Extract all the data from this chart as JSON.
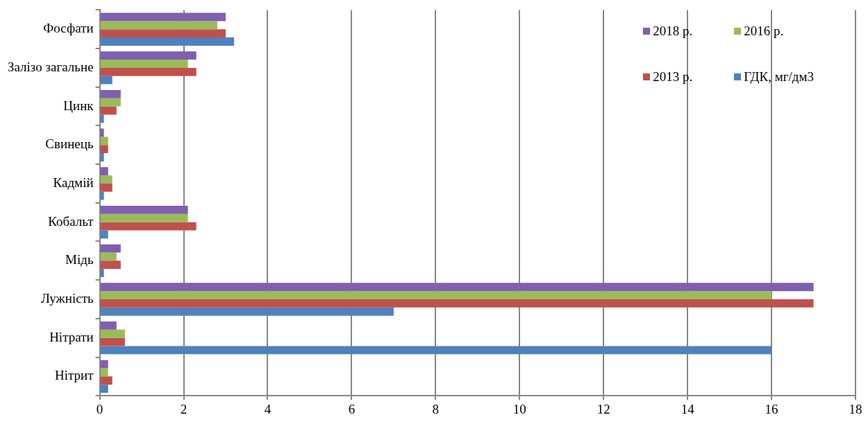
{
  "chart_data": {
    "type": "bar",
    "orientation": "horizontal",
    "categories": [
      "Фосфати",
      "Залізо загальне",
      "Цинк",
      "Свинець",
      "Кадмій",
      "Кобальт",
      "Мідь",
      "Лужність",
      "Нітрати",
      "Нітрит"
    ],
    "series": [
      {
        "name": "2018 р.",
        "color": "#7f5fb0",
        "values": [
          3.0,
          2.3,
          0.5,
          0.1,
          0.2,
          2.1,
          0.5,
          17,
          0.4,
          0.2
        ]
      },
      {
        "name": "2016 р.",
        "color": "#9bbb59",
        "values": [
          2.8,
          2.1,
          0.5,
          0.2,
          0.3,
          2.1,
          0.4,
          16,
          0.6,
          0.2
        ]
      },
      {
        "name": "2013 р.",
        "color": "#c0504d",
        "values": [
          3.0,
          2.3,
          0.4,
          0.2,
          0.3,
          2.3,
          0.5,
          17,
          0.6,
          0.3
        ]
      },
      {
        "name": "ГДК, мг/дм3",
        "color": "#4f81bd",
        "values": [
          3.2,
          0.3,
          0.1,
          0.1,
          0.1,
          0.2,
          0.1,
          7,
          16,
          0.2
        ]
      }
    ],
    "xlim": [
      0,
      18
    ],
    "xticks": [
      0,
      2,
      4,
      6,
      8,
      10,
      12,
      14,
      16,
      18
    ],
    "grid": "x",
    "legend": "top right"
  }
}
